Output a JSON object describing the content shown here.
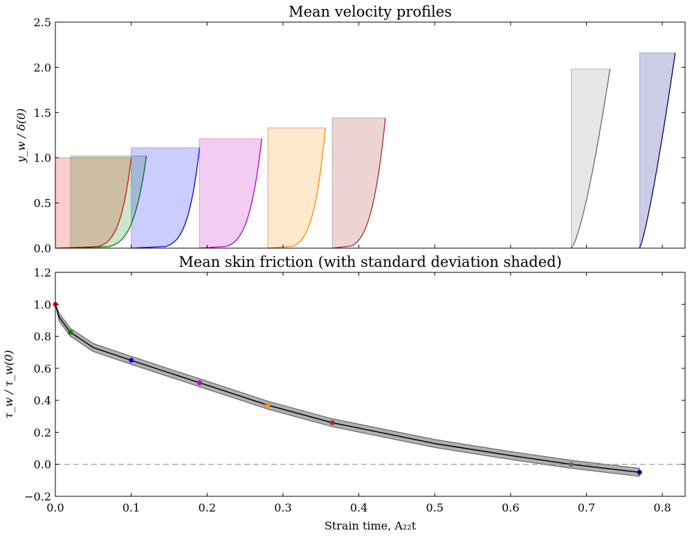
{
  "chart_data": [
    {
      "type": "area",
      "title": "Mean velocity profiles",
      "xlabel": "",
      "ylabel": "y_w / δ(0)",
      "xlim": [
        0,
        0.83
      ],
      "ylim": [
        0,
        2.5
      ],
      "yticks": [
        "0.0",
        "0.5",
        "1.0",
        "1.5",
        "2.0",
        "2.5"
      ],
      "xticks": [
        0,
        0.1,
        0.2,
        0.3,
        0.4,
        0.5,
        0.6,
        0.7,
        0.8
      ],
      "grid": false,
      "profiles": [
        {
          "t": 0.0,
          "height": 1.0,
          "u_max": 0.1,
          "color": "#ff0000",
          "fill": "#ffcccc"
        },
        {
          "t": 0.02,
          "height": 1.02,
          "u_max": 0.1,
          "color": "#008000",
          "fill": "#008000"
        },
        {
          "t": 0.1,
          "height": 1.11,
          "u_max": 0.09,
          "color": "#0000ff",
          "fill": "#0000ff"
        },
        {
          "t": 0.19,
          "height": 1.21,
          "u_max": 0.082,
          "color": "#bf00bf",
          "fill": "#bf00bf"
        },
        {
          "t": 0.28,
          "height": 1.33,
          "u_max": 0.076,
          "color": "#ff8c00",
          "fill": "#ff8c00"
        },
        {
          "t": 0.365,
          "height": 1.44,
          "u_max": 0.07,
          "color": "#a52a2a",
          "fill": "#a52a2a"
        },
        {
          "t": 0.68,
          "height": 1.98,
          "u_max": 0.051,
          "color": "#696969",
          "fill": "#808080"
        },
        {
          "t": 0.77,
          "height": 2.16,
          "u_max": 0.047,
          "color": "#000080",
          "fill": "#000080"
        }
      ]
    },
    {
      "type": "line",
      "title": "Mean skin friction (with standard deviation shaded)",
      "xlabel": "Strain time, A₂₂t",
      "ylabel": "τ_w / τ_w(0)",
      "xlim": [
        0,
        0.83
      ],
      "ylim": [
        -0.2,
        1.2
      ],
      "xticks": [
        "0.0",
        "0.1",
        "0.2",
        "0.3",
        "0.4",
        "0.5",
        "0.6",
        "0.7",
        "0.8"
      ],
      "yticks": [
        "−0.2",
        "0.0",
        "0.2",
        "0.4",
        "0.6",
        "0.8",
        "1.0",
        "1.2"
      ],
      "grid": false,
      "reference_line": {
        "y": 0.0,
        "style": "dashed",
        "color": "#808080"
      },
      "series": [
        {
          "x": [
            0,
            0.005,
            0.02,
            0.05,
            0.1,
            0.19,
            0.28,
            0.365,
            0.5,
            0.6,
            0.68,
            0.77
          ],
          "y": [
            1.0,
            0.92,
            0.825,
            0.73,
            0.65,
            0.51,
            0.37,
            0.26,
            0.13,
            0.055,
            0.0,
            -0.05
          ],
          "std": 0.025,
          "color": "#000000",
          "band_color": "#b0b0b0"
        }
      ],
      "markers": [
        {
          "x": 0.0,
          "y": 1.0,
          "color": "#ff0000"
        },
        {
          "x": 0.02,
          "y": 0.825,
          "color": "#008000"
        },
        {
          "x": 0.1,
          "y": 0.65,
          "color": "#0000ff"
        },
        {
          "x": 0.19,
          "y": 0.51,
          "color": "#bf00bf"
        },
        {
          "x": 0.28,
          "y": 0.37,
          "color": "#ff8c00"
        },
        {
          "x": 0.365,
          "y": 0.26,
          "color": "#a52a2a"
        },
        {
          "x": 0.68,
          "y": 0.0,
          "color": "#696969"
        },
        {
          "x": 0.77,
          "y": -0.05,
          "color": "#000080"
        }
      ]
    }
  ]
}
